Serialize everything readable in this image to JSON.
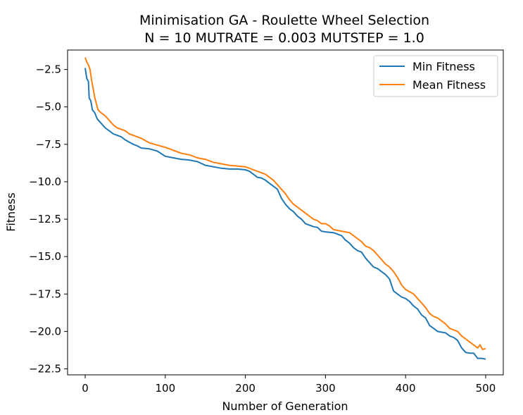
{
  "chart_data": {
    "type": "line",
    "title": "Minimisation GA - Roulette Wheel Selection",
    "subtitle": "N = 10 MUTRATE = 0.003 MUTSTEP = 1.0",
    "xlabel": "Number of Generation",
    "ylabel": "Fitness",
    "xlim": [
      -22,
      522
    ],
    "ylim": [
      -22.9,
      -1.2
    ],
    "xticks": [
      0,
      100,
      200,
      300,
      400,
      500
    ],
    "yticks": [
      -2.5,
      -5.0,
      -7.5,
      -10.0,
      -12.5,
      -15.0,
      -17.5,
      -20.0,
      -22.5
    ],
    "xtick_labels": [
      "0",
      "100",
      "200",
      "300",
      "400",
      "500"
    ],
    "ytick_labels": [
      "−2.5",
      "−5.0",
      "−7.5",
      "−10.0",
      "−12.5",
      "−15.0",
      "−17.5",
      "−20.0",
      "−22.5"
    ],
    "grid": false,
    "legend_position": "top-right",
    "series": [
      {
        "name": "Min Fitness",
        "color": "#1f77b4",
        "points": [
          [
            0,
            -2.4
          ],
          [
            2,
            -3.1
          ],
          [
            4,
            -3.3
          ],
          [
            5,
            -4.4
          ],
          [
            7,
            -4.6
          ],
          [
            9,
            -5.2
          ],
          [
            12,
            -5.4
          ],
          [
            15,
            -5.8
          ],
          [
            20,
            -6.1
          ],
          [
            25,
            -6.4
          ],
          [
            30,
            -6.6
          ],
          [
            35,
            -6.8
          ],
          [
            40,
            -6.9
          ],
          [
            45,
            -7.0
          ],
          [
            50,
            -7.2
          ],
          [
            55,
            -7.35
          ],
          [
            60,
            -7.5
          ],
          [
            65,
            -7.6
          ],
          [
            70,
            -7.75
          ],
          [
            80,
            -7.8
          ],
          [
            90,
            -7.95
          ],
          [
            100,
            -8.3
          ],
          [
            110,
            -8.4
          ],
          [
            120,
            -8.5
          ],
          [
            130,
            -8.55
          ],
          [
            140,
            -8.65
          ],
          [
            150,
            -8.9
          ],
          [
            160,
            -9.0
          ],
          [
            170,
            -9.1
          ],
          [
            180,
            -9.15
          ],
          [
            190,
            -9.15
          ],
          [
            200,
            -9.2
          ],
          [
            205,
            -9.3
          ],
          [
            210,
            -9.5
          ],
          [
            215,
            -9.7
          ],
          [
            220,
            -9.75
          ],
          [
            225,
            -9.9
          ],
          [
            230,
            -10.1
          ],
          [
            235,
            -10.3
          ],
          [
            240,
            -10.5
          ],
          [
            245,
            -11.1
          ],
          [
            250,
            -11.5
          ],
          [
            255,
            -11.8
          ],
          [
            260,
            -12.0
          ],
          [
            265,
            -12.3
          ],
          [
            270,
            -12.5
          ],
          [
            275,
            -12.8
          ],
          [
            280,
            -12.9
          ],
          [
            285,
            -13.0
          ],
          [
            290,
            -13.05
          ],
          [
            295,
            -13.3
          ],
          [
            300,
            -13.35
          ],
          [
            310,
            -13.4
          ],
          [
            320,
            -13.6
          ],
          [
            325,
            -13.9
          ],
          [
            330,
            -14.1
          ],
          [
            335,
            -14.4
          ],
          [
            340,
            -14.6
          ],
          [
            345,
            -14.7
          ],
          [
            350,
            -15.1
          ],
          [
            355,
            -15.4
          ],
          [
            360,
            -15.7
          ],
          [
            365,
            -15.8
          ],
          [
            370,
            -16.0
          ],
          [
            375,
            -16.2
          ],
          [
            380,
            -16.5
          ],
          [
            385,
            -17.3
          ],
          [
            390,
            -17.5
          ],
          [
            395,
            -17.7
          ],
          [
            400,
            -17.8
          ],
          [
            405,
            -18.0
          ],
          [
            410,
            -18.3
          ],
          [
            415,
            -18.5
          ],
          [
            420,
            -18.9
          ],
          [
            425,
            -19.1
          ],
          [
            430,
            -19.6
          ],
          [
            435,
            -19.8
          ],
          [
            440,
            -20.0
          ],
          [
            450,
            -20.1
          ],
          [
            455,
            -20.3
          ],
          [
            460,
            -20.4
          ],
          [
            465,
            -20.6
          ],
          [
            470,
            -21.1
          ],
          [
            475,
            -21.4
          ],
          [
            480,
            -21.45
          ],
          [
            485,
            -21.45
          ],
          [
            490,
            -21.8
          ],
          [
            495,
            -21.8
          ],
          [
            500,
            -21.85
          ]
        ]
      },
      {
        "name": "Mean Fitness",
        "color": "#ff7f0e",
        "points": [
          [
            0,
            -1.7
          ],
          [
            2,
            -2.0
          ],
          [
            4,
            -2.2
          ],
          [
            6,
            -2.5
          ],
          [
            8,
            -3.2
          ],
          [
            10,
            -3.8
          ],
          [
            12,
            -4.4
          ],
          [
            14,
            -4.8
          ],
          [
            16,
            -5.2
          ],
          [
            20,
            -5.4
          ],
          [
            25,
            -5.6
          ],
          [
            30,
            -5.9
          ],
          [
            35,
            -6.2
          ],
          [
            40,
            -6.4
          ],
          [
            45,
            -6.5
          ],
          [
            50,
            -6.6
          ],
          [
            55,
            -6.8
          ],
          [
            60,
            -6.9
          ],
          [
            70,
            -7.1
          ],
          [
            80,
            -7.4
          ],
          [
            90,
            -7.55
          ],
          [
            100,
            -7.7
          ],
          [
            110,
            -7.9
          ],
          [
            120,
            -8.1
          ],
          [
            130,
            -8.2
          ],
          [
            140,
            -8.4
          ],
          [
            150,
            -8.5
          ],
          [
            160,
            -8.7
          ],
          [
            170,
            -8.8
          ],
          [
            180,
            -8.9
          ],
          [
            190,
            -8.95
          ],
          [
            200,
            -9.0
          ],
          [
            210,
            -9.2
          ],
          [
            220,
            -9.4
          ],
          [
            225,
            -9.5
          ],
          [
            230,
            -9.7
          ],
          [
            235,
            -9.9
          ],
          [
            240,
            -10.2
          ],
          [
            245,
            -10.5
          ],
          [
            250,
            -10.8
          ],
          [
            255,
            -11.2
          ],
          [
            260,
            -11.5
          ],
          [
            265,
            -11.7
          ],
          [
            270,
            -11.9
          ],
          [
            275,
            -12.1
          ],
          [
            280,
            -12.3
          ],
          [
            285,
            -12.5
          ],
          [
            290,
            -12.6
          ],
          [
            295,
            -12.8
          ],
          [
            300,
            -12.8
          ],
          [
            305,
            -12.95
          ],
          [
            310,
            -13.2
          ],
          [
            320,
            -13.3
          ],
          [
            330,
            -13.4
          ],
          [
            335,
            -13.6
          ],
          [
            340,
            -13.8
          ],
          [
            345,
            -14.0
          ],
          [
            350,
            -14.3
          ],
          [
            355,
            -14.4
          ],
          [
            360,
            -14.6
          ],
          [
            365,
            -14.9
          ],
          [
            370,
            -15.2
          ],
          [
            375,
            -15.5
          ],
          [
            380,
            -15.7
          ],
          [
            385,
            -16.0
          ],
          [
            390,
            -16.4
          ],
          [
            395,
            -16.9
          ],
          [
            400,
            -17.2
          ],
          [
            405,
            -17.35
          ],
          [
            410,
            -17.5
          ],
          [
            415,
            -17.8
          ],
          [
            420,
            -18.1
          ],
          [
            425,
            -18.4
          ],
          [
            430,
            -18.8
          ],
          [
            435,
            -19.0
          ],
          [
            440,
            -19.1
          ],
          [
            445,
            -19.3
          ],
          [
            450,
            -19.5
          ],
          [
            455,
            -19.8
          ],
          [
            460,
            -19.9
          ],
          [
            465,
            -20.0
          ],
          [
            470,
            -20.3
          ],
          [
            475,
            -20.5
          ],
          [
            480,
            -20.7
          ],
          [
            485,
            -20.9
          ],
          [
            490,
            -21.1
          ],
          [
            493,
            -20.9
          ],
          [
            496,
            -21.2
          ],
          [
            500,
            -21.15
          ]
        ]
      }
    ]
  }
}
